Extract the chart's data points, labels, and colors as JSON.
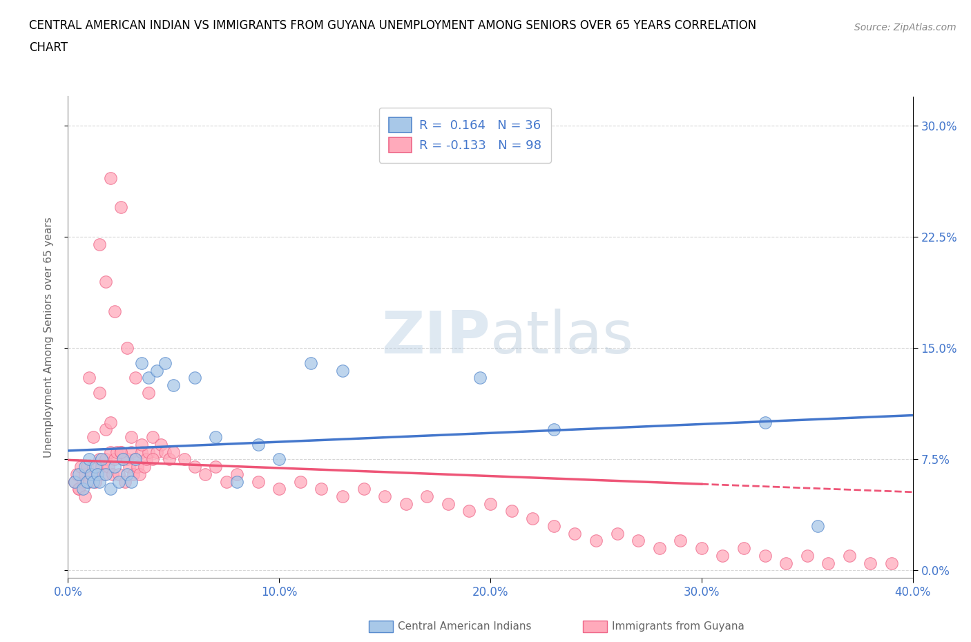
{
  "title_line1": "CENTRAL AMERICAN INDIAN VS IMMIGRANTS FROM GUYANA UNEMPLOYMENT AMONG SENIORS OVER 65 YEARS CORRELATION",
  "title_line2": "CHART",
  "source": "Source: ZipAtlas.com",
  "ylabel": "Unemployment Among Seniors over 65 years",
  "xlim": [
    0.0,
    0.4
  ],
  "ylim": [
    -0.005,
    0.32
  ],
  "xticklabels": [
    "0.0%",
    "10.0%",
    "20.0%",
    "30.0%",
    "40.0%"
  ],
  "xtick_vals": [
    0.0,
    0.1,
    0.2,
    0.3,
    0.4
  ],
  "ytick_vals": [
    0.0,
    0.075,
    0.15,
    0.225,
    0.3
  ],
  "yticklabels_right": [
    "0.0%",
    "7.5%",
    "15.0%",
    "22.5%",
    "30.0%"
  ],
  "watermark": "ZIPatlas",
  "legend_label1": "Central American Indians",
  "legend_label2": "Immigrants from Guyana",
  "R1": 0.164,
  "N1": 36,
  "R2": -0.133,
  "N2": 98,
  "color_blue_fill": "#A8C8E8",
  "color_blue_edge": "#5588CC",
  "color_pink_fill": "#FFAABB",
  "color_pink_edge": "#EE6688",
  "color_line_blue": "#4477CC",
  "color_line_pink": "#EE5577",
  "grid_color": "#CCCCCC",
  "blue_x": [
    0.003,
    0.005,
    0.007,
    0.008,
    0.009,
    0.01,
    0.011,
    0.012,
    0.013,
    0.014,
    0.015,
    0.016,
    0.018,
    0.02,
    0.022,
    0.024,
    0.026,
    0.028,
    0.03,
    0.032,
    0.035,
    0.038,
    0.042,
    0.046,
    0.05,
    0.06,
    0.07,
    0.08,
    0.09,
    0.1,
    0.115,
    0.13,
    0.195,
    0.23,
    0.33,
    0.355
  ],
  "blue_y": [
    0.06,
    0.065,
    0.055,
    0.07,
    0.06,
    0.075,
    0.065,
    0.06,
    0.07,
    0.065,
    0.06,
    0.075,
    0.065,
    0.055,
    0.07,
    0.06,
    0.075,
    0.065,
    0.06,
    0.075,
    0.14,
    0.13,
    0.135,
    0.14,
    0.125,
    0.13,
    0.09,
    0.06,
    0.085,
    0.075,
    0.14,
    0.135,
    0.13,
    0.095,
    0.1,
    0.03
  ],
  "pink_x": [
    0.003,
    0.004,
    0.005,
    0.006,
    0.007,
    0.008,
    0.009,
    0.01,
    0.011,
    0.012,
    0.013,
    0.014,
    0.015,
    0.016,
    0.017,
    0.018,
    0.019,
    0.02,
    0.021,
    0.022,
    0.023,
    0.024,
    0.025,
    0.026,
    0.027,
    0.028,
    0.029,
    0.03,
    0.031,
    0.032,
    0.033,
    0.034,
    0.035,
    0.036,
    0.037,
    0.038,
    0.04,
    0.042,
    0.044,
    0.046,
    0.048,
    0.05,
    0.055,
    0.06,
    0.065,
    0.07,
    0.075,
    0.08,
    0.09,
    0.1,
    0.11,
    0.12,
    0.13,
    0.14,
    0.15,
    0.16,
    0.17,
    0.18,
    0.19,
    0.2,
    0.21,
    0.22,
    0.23,
    0.24,
    0.25,
    0.26,
    0.27,
    0.28,
    0.29,
    0.3,
    0.31,
    0.32,
    0.33,
    0.34,
    0.35,
    0.36,
    0.37,
    0.38,
    0.39,
    0.005,
    0.008,
    0.01,
    0.012,
    0.015,
    0.018,
    0.02,
    0.025,
    0.03,
    0.035,
    0.04,
    0.02,
    0.025,
    0.015,
    0.018,
    0.022,
    0.028,
    0.032,
    0.038
  ],
  "pink_y": [
    0.06,
    0.065,
    0.055,
    0.07,
    0.06,
    0.065,
    0.07,
    0.06,
    0.065,
    0.07,
    0.06,
    0.065,
    0.075,
    0.07,
    0.065,
    0.075,
    0.07,
    0.08,
    0.065,
    0.075,
    0.08,
    0.065,
    0.08,
    0.075,
    0.06,
    0.075,
    0.07,
    0.08,
    0.065,
    0.075,
    0.07,
    0.065,
    0.08,
    0.07,
    0.075,
    0.08,
    0.09,
    0.08,
    0.085,
    0.08,
    0.075,
    0.08,
    0.075,
    0.07,
    0.065,
    0.07,
    0.06,
    0.065,
    0.06,
    0.055,
    0.06,
    0.055,
    0.05,
    0.055,
    0.05,
    0.045,
    0.05,
    0.045,
    0.04,
    0.045,
    0.04,
    0.035,
    0.03,
    0.025,
    0.02,
    0.025,
    0.02,
    0.015,
    0.02,
    0.015,
    0.01,
    0.015,
    0.01,
    0.005,
    0.01,
    0.005,
    0.01,
    0.005,
    0.005,
    0.055,
    0.05,
    0.13,
    0.09,
    0.12,
    0.095,
    0.1,
    0.08,
    0.09,
    0.085,
    0.075,
    0.265,
    0.245,
    0.22,
    0.195,
    0.175,
    0.15,
    0.13,
    0.12
  ]
}
